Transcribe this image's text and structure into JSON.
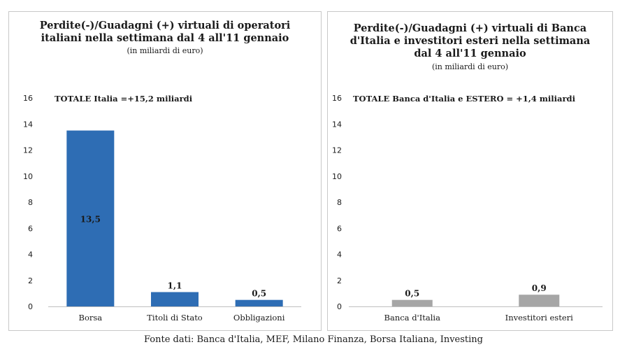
{
  "source": "Fonte dati: Banca d'Italia, MEF, Milano Finanza, Borsa Italiana, Investing",
  "chart_data": [
    {
      "type": "bar",
      "title_lines": [
        "Perdite(-)/Guadagni (+) virtuali di operatori",
        "italiani nella settimana dal 4 all'11 gennaio"
      ],
      "subtitle": "(in miliardi di euro)",
      "annotation": "TOTALE  Italia =+15,2 miliardi",
      "categories": [
        "Borsa",
        "Titoli di Stato",
        "Obbligazioni"
      ],
      "values": [
        13.5,
        1.1,
        0.5
      ],
      "value_labels": [
        "13,5",
        "1,1",
        "0,5"
      ],
      "ylim": [
        0,
        16
      ],
      "yticks": [
        0,
        2,
        4,
        6,
        8,
        10,
        12,
        14,
        16
      ],
      "color": "#2e6db4",
      "grid": false
    },
    {
      "type": "bar",
      "title_lines": [
        "Perdite(-)/Guadagni (+)  virtuali di Banca",
        "d'Italia e investitori esteri  nella settimana",
        "dal 4 all'11 gennaio"
      ],
      "subtitle": "(in miliardi di euro)",
      "annotation": "TOTALE  Banca d'Italia e ESTERO = +1,4 miliardi",
      "categories": [
        "Banca d'Italia",
        "Investitori esteri"
      ],
      "values": [
        0.5,
        0.9
      ],
      "value_labels": [
        "0,5",
        "0,9"
      ],
      "ylim": [
        0,
        16
      ],
      "yticks": [
        0,
        2,
        4,
        6,
        8,
        10,
        12,
        14,
        16
      ],
      "color": "#a6a6a6",
      "grid": false
    }
  ]
}
